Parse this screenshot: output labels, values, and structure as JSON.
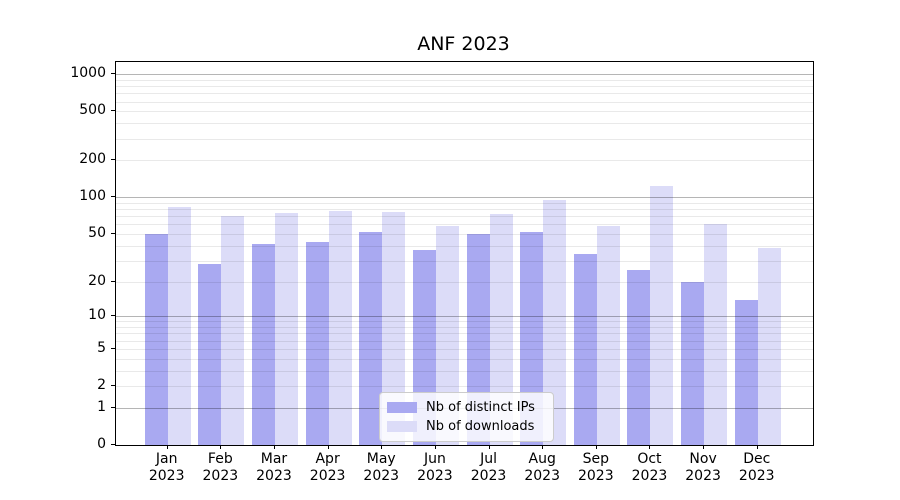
{
  "title": "ANF 2023",
  "colors": {
    "bar_distinct_ips": "#a9a9f1",
    "bar_downloads": "#dcdcf8",
    "grid_major": "#b0b0b0",
    "grid_minor": "#e9e9e9",
    "axis": "#000000",
    "legend_border": "#cccccc",
    "legend_background": "#ffffff"
  },
  "chart_data": {
    "type": "bar",
    "title": "ANF 2023",
    "categories": [
      "Jan 2023",
      "Feb 2023",
      "Mar 2023",
      "Apr 2023",
      "May 2023",
      "Jun 2023",
      "Jul 2023",
      "Aug 2023",
      "Sep 2023",
      "Oct 2023",
      "Nov 2023",
      "Dec 2023"
    ],
    "x_tick_months": [
      "Jan",
      "Feb",
      "Mar",
      "Apr",
      "May",
      "Jun",
      "Jul",
      "Aug",
      "Sep",
      "Oct",
      "Nov",
      "Dec"
    ],
    "x_tick_year": "2023",
    "series": [
      {
        "name": "Nb of distinct IPs",
        "values": [
          50,
          28,
          41,
          43,
          52,
          37,
          50,
          52,
          34,
          25,
          20,
          14
        ]
      },
      {
        "name": "Nb of downloads",
        "values": [
          83,
          70,
          74,
          77,
          76,
          58,
          73,
          95,
          58,
          124,
          61,
          38
        ]
      }
    ],
    "y_axis": {
      "ticks": [
        0,
        1,
        2,
        5,
        10,
        20,
        50,
        100,
        200,
        500,
        1000
      ],
      "scale": "log10(value+1)",
      "range": [
        0,
        1250
      ],
      "major_gridlines": [
        1,
        10,
        100,
        1000
      ]
    },
    "grid": "on",
    "legend_position": "lower center"
  }
}
